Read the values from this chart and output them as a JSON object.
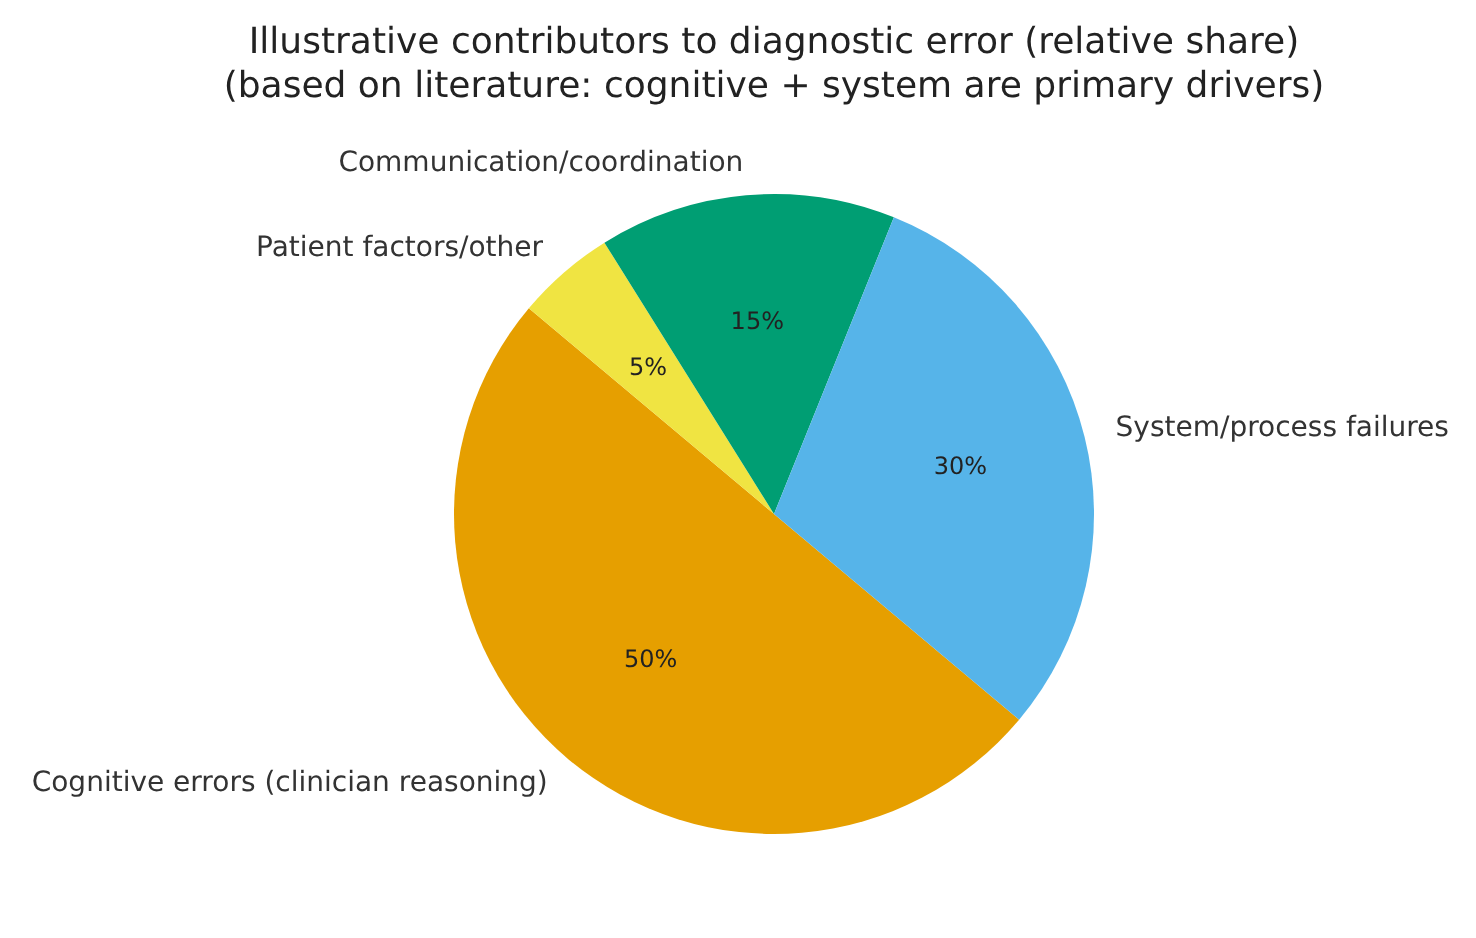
{
  "chart_data": {
    "type": "pie",
    "title": "Illustrative contributors to diagnostic error (relative share)\n(based on literature: cognitive + system are primary drivers)",
    "categories": [
      "Cognitive errors (clinician reasoning)",
      "Patient factors/other",
      "Communication/coordination",
      "System/process failures"
    ],
    "values": [
      50,
      5,
      15,
      30
    ],
    "value_labels": [
      "50%",
      "5%",
      "15%",
      "30%"
    ],
    "colors": [
      "#e69f00",
      "#f0e442",
      "#009e73",
      "#56b4e9"
    ],
    "legend": false
  }
}
